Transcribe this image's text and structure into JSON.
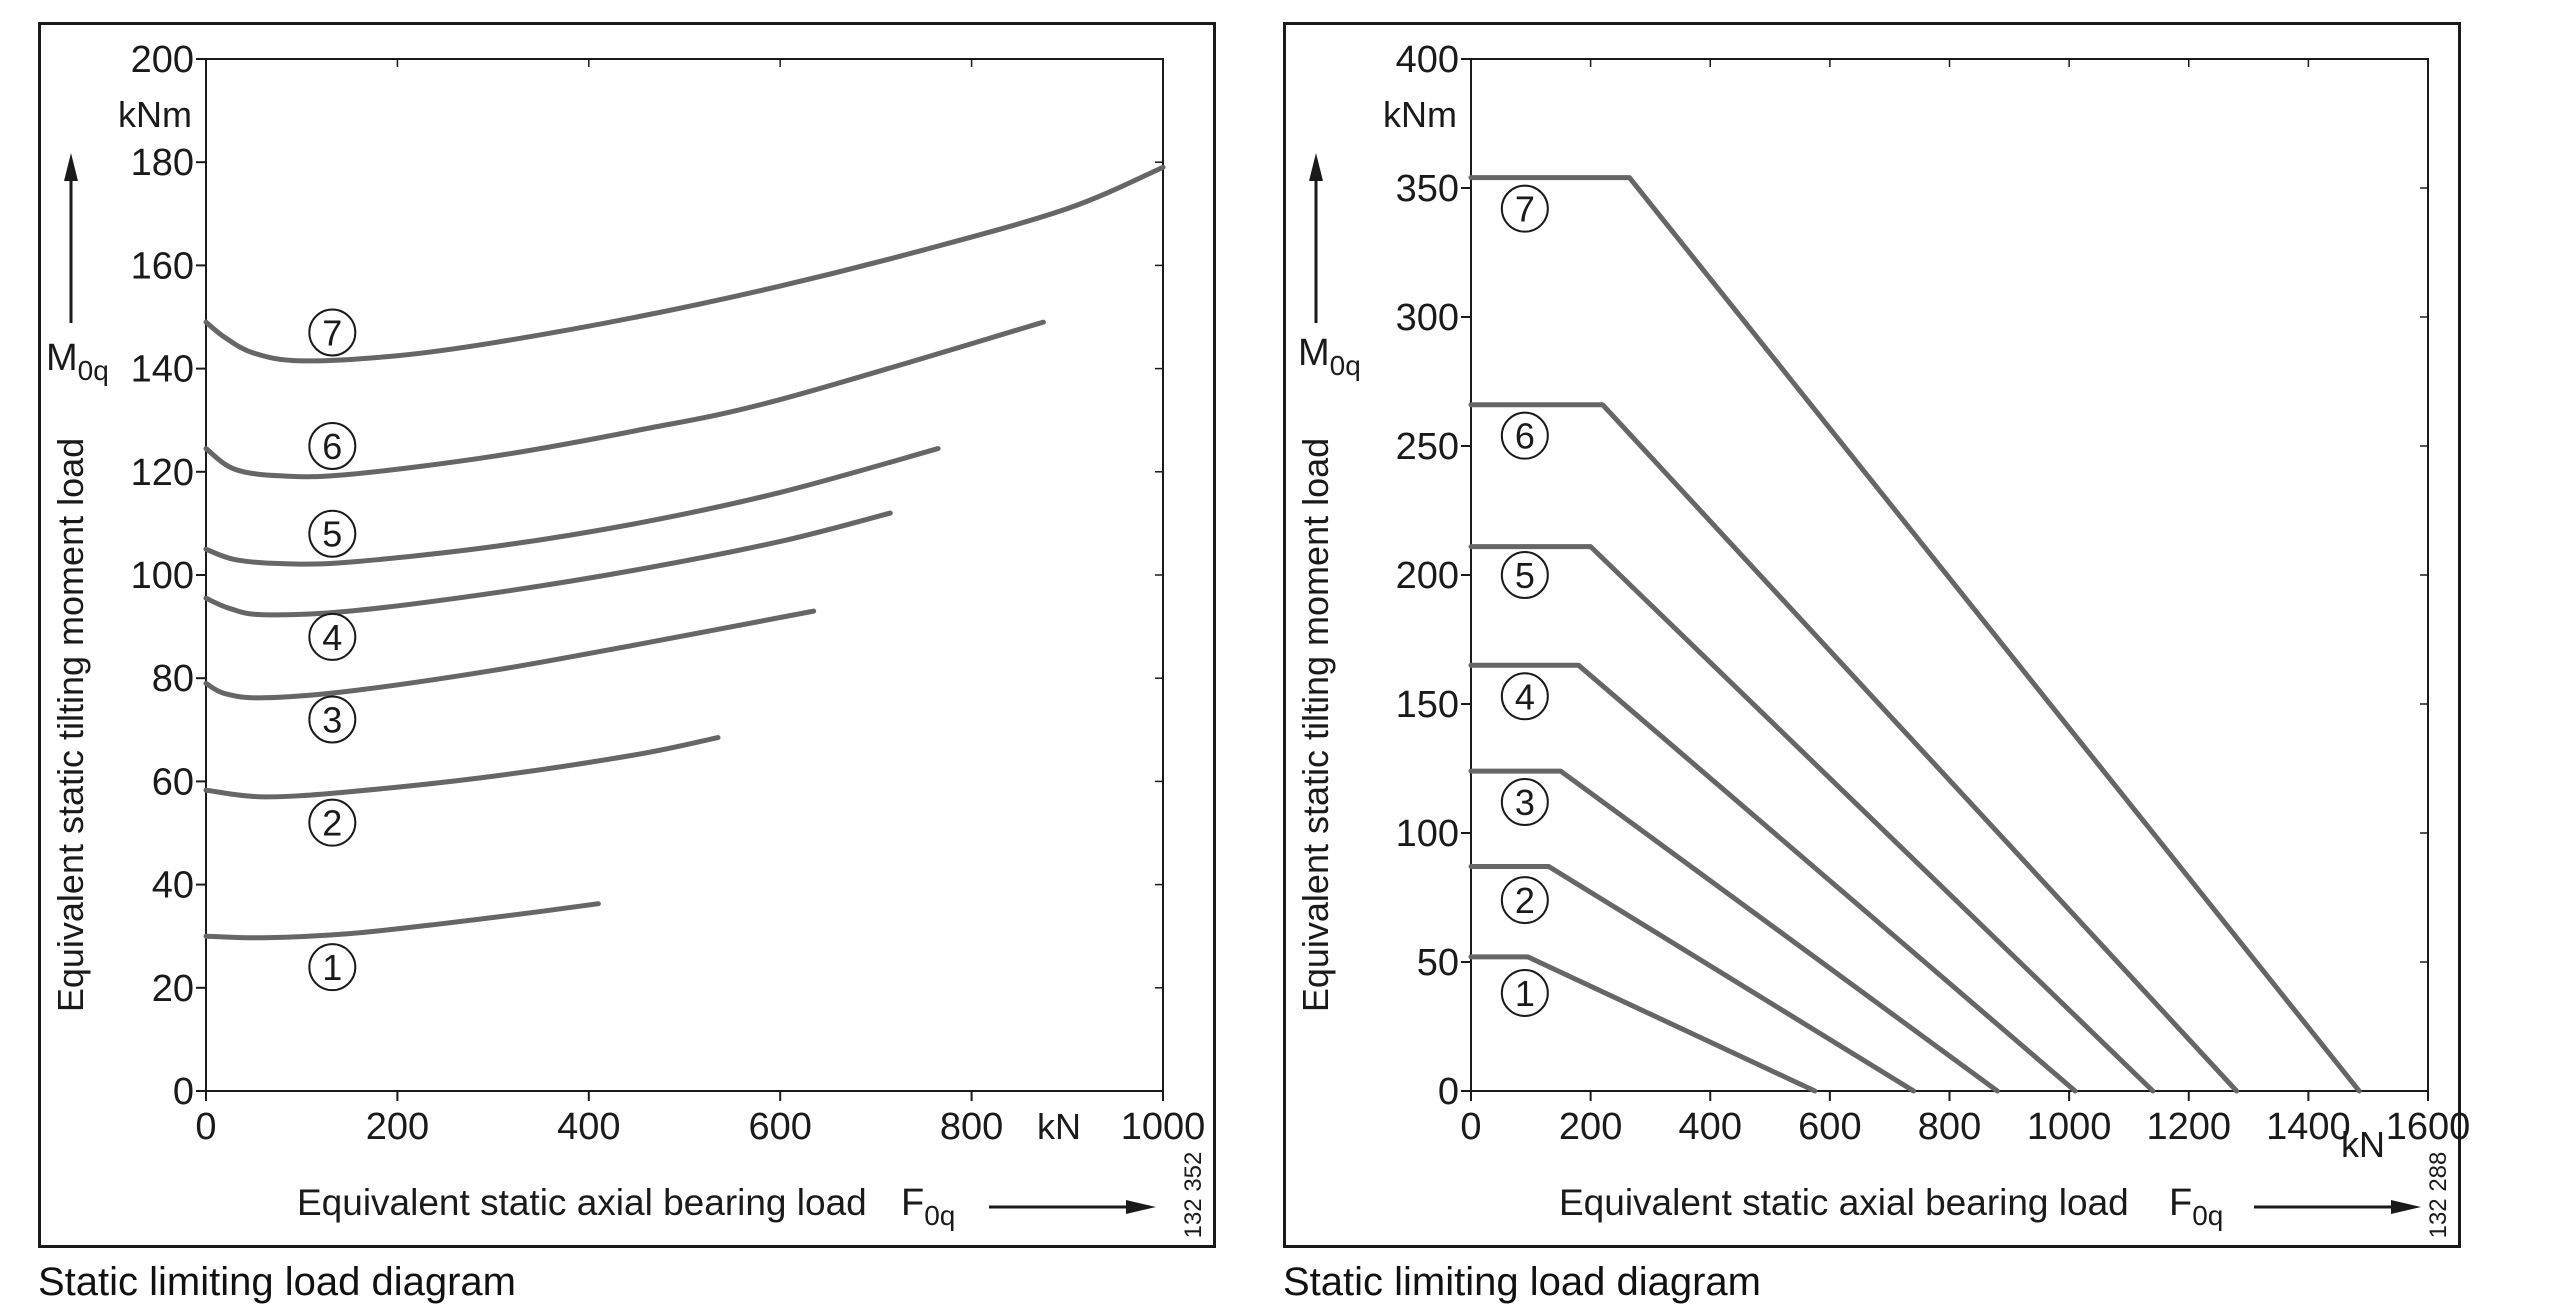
{
  "chart_data": [
    {
      "type": "line",
      "ylabel": "Equivalent static tilting moment load",
      "ylabel_symbol": "M",
      "ylabel_subscript": "0q",
      "y_unit": "kNm",
      "xlabel": "Equivalent static axial bearing load",
      "xlabel_symbol": "F",
      "xlabel_subscript": "0q",
      "x_unit": "kN",
      "xlim": [
        0,
        1000
      ],
      "ylim": [
        0,
        200
      ],
      "xticks": [
        "0",
        "200",
        "400",
        "600",
        "800",
        "1000"
      ],
      "yticks": [
        "0",
        "20",
        "40",
        "60",
        "80",
        "100",
        "120",
        "140",
        "160",
        "180",
        "200"
      ],
      "grid": false,
      "drawing_number": "132 352",
      "caption": "Static limiting load diagram",
      "series": [
        {
          "name": "1",
          "x": [
            0,
            60,
            150,
            250,
            350,
            410
          ],
          "y": [
            30,
            29.7,
            30.5,
            32.5,
            34.8,
            36.3
          ],
          "label_at": [
            132,
            24
          ]
        },
        {
          "name": "2",
          "x": [
            0,
            60,
            150,
            300,
            450,
            535
          ],
          "y": [
            58.3,
            57,
            58,
            61,
            65.2,
            68.5
          ],
          "label_at": [
            132,
            52
          ]
        },
        {
          "name": "3",
          "x": [
            0,
            20,
            60,
            150,
            300,
            450,
            635
          ],
          "y": [
            79,
            77,
            76.2,
            77.5,
            81.5,
            86.5,
            93
          ],
          "label_at": [
            132,
            72
          ]
        },
        {
          "name": "4",
          "x": [
            0,
            25,
            60,
            150,
            300,
            450,
            600,
            715
          ],
          "y": [
            95.5,
            93.5,
            92.3,
            93,
            96.5,
            101,
            106.5,
            112
          ],
          "label_at": [
            132,
            88
          ]
        },
        {
          "name": "5",
          "x": [
            0,
            30,
            80,
            150,
            300,
            450,
            600,
            765
          ],
          "y": [
            105,
            103,
            102.2,
            102.5,
            105.5,
            110,
            116,
            124.5
          ],
          "label_at": [
            132,
            108
          ]
        },
        {
          "name": "6",
          "x": [
            0,
            30,
            80,
            150,
            300,
            450,
            600,
            875
          ],
          "y": [
            124.5,
            120.5,
            119.2,
            119.5,
            123,
            128,
            134,
            149
          ],
          "label_at": [
            132,
            125
          ]
        },
        {
          "name": "7",
          "x": [
            0,
            20,
            50,
            100,
            200,
            300,
            450,
            600,
            750,
            900,
            1000
          ],
          "y": [
            149,
            146,
            143,
            141.5,
            142.5,
            145,
            150,
            156,
            163,
            171,
            179
          ],
          "label_at": [
            132,
            147
          ]
        }
      ]
    },
    {
      "type": "line",
      "ylabel": "Equivalent static tilting moment load",
      "ylabel_symbol": "M",
      "ylabel_subscript": "0q",
      "y_unit": "kNm",
      "xlabel": "Equivalent static axial bearing load",
      "xlabel_symbol": "F",
      "xlabel_subscript": "0q",
      "x_unit": "kN",
      "xlim": [
        0,
        1600
      ],
      "ylim": [
        0,
        400
      ],
      "xticks": [
        "0",
        "200",
        "400",
        "600",
        "800",
        "1000",
        "1200",
        "1400",
        "1600"
      ],
      "yticks": [
        "0",
        "50",
        "100",
        "150",
        "200",
        "250",
        "300",
        "350",
        "400"
      ],
      "grid": false,
      "drawing_number": "132 288",
      "caption": "Static limiting load diagram",
      "series": [
        {
          "name": "1",
          "x": [
            0,
            95,
            575
          ],
          "y": [
            52,
            52,
            0
          ],
          "label_at": [
            90,
            38
          ]
        },
        {
          "name": "2",
          "x": [
            0,
            130,
            740
          ],
          "y": [
            87,
            87,
            0
          ],
          "label_at": [
            90,
            74
          ]
        },
        {
          "name": "3",
          "x": [
            0,
            150,
            880
          ],
          "y": [
            124,
            124,
            0
          ],
          "label_at": [
            90,
            112
          ]
        },
        {
          "name": "4",
          "x": [
            0,
            180,
            1010
          ],
          "y": [
            165,
            165,
            0
          ],
          "label_at": [
            90,
            153
          ]
        },
        {
          "name": "5",
          "x": [
            0,
            200,
            1140
          ],
          "y": [
            211,
            211,
            0
          ],
          "label_at": [
            90,
            200
          ]
        },
        {
          "name": "6",
          "x": [
            0,
            220,
            1280
          ],
          "y": [
            266,
            266,
            0
          ],
          "label_at": [
            90,
            254
          ]
        },
        {
          "name": "7",
          "x": [
            0,
            265,
            1485
          ],
          "y": [
            354,
            354,
            0
          ],
          "label_at": [
            90,
            342
          ]
        }
      ]
    }
  ],
  "style": {
    "line_color": "#666666",
    "axis_color": "#1a1a1a"
  }
}
